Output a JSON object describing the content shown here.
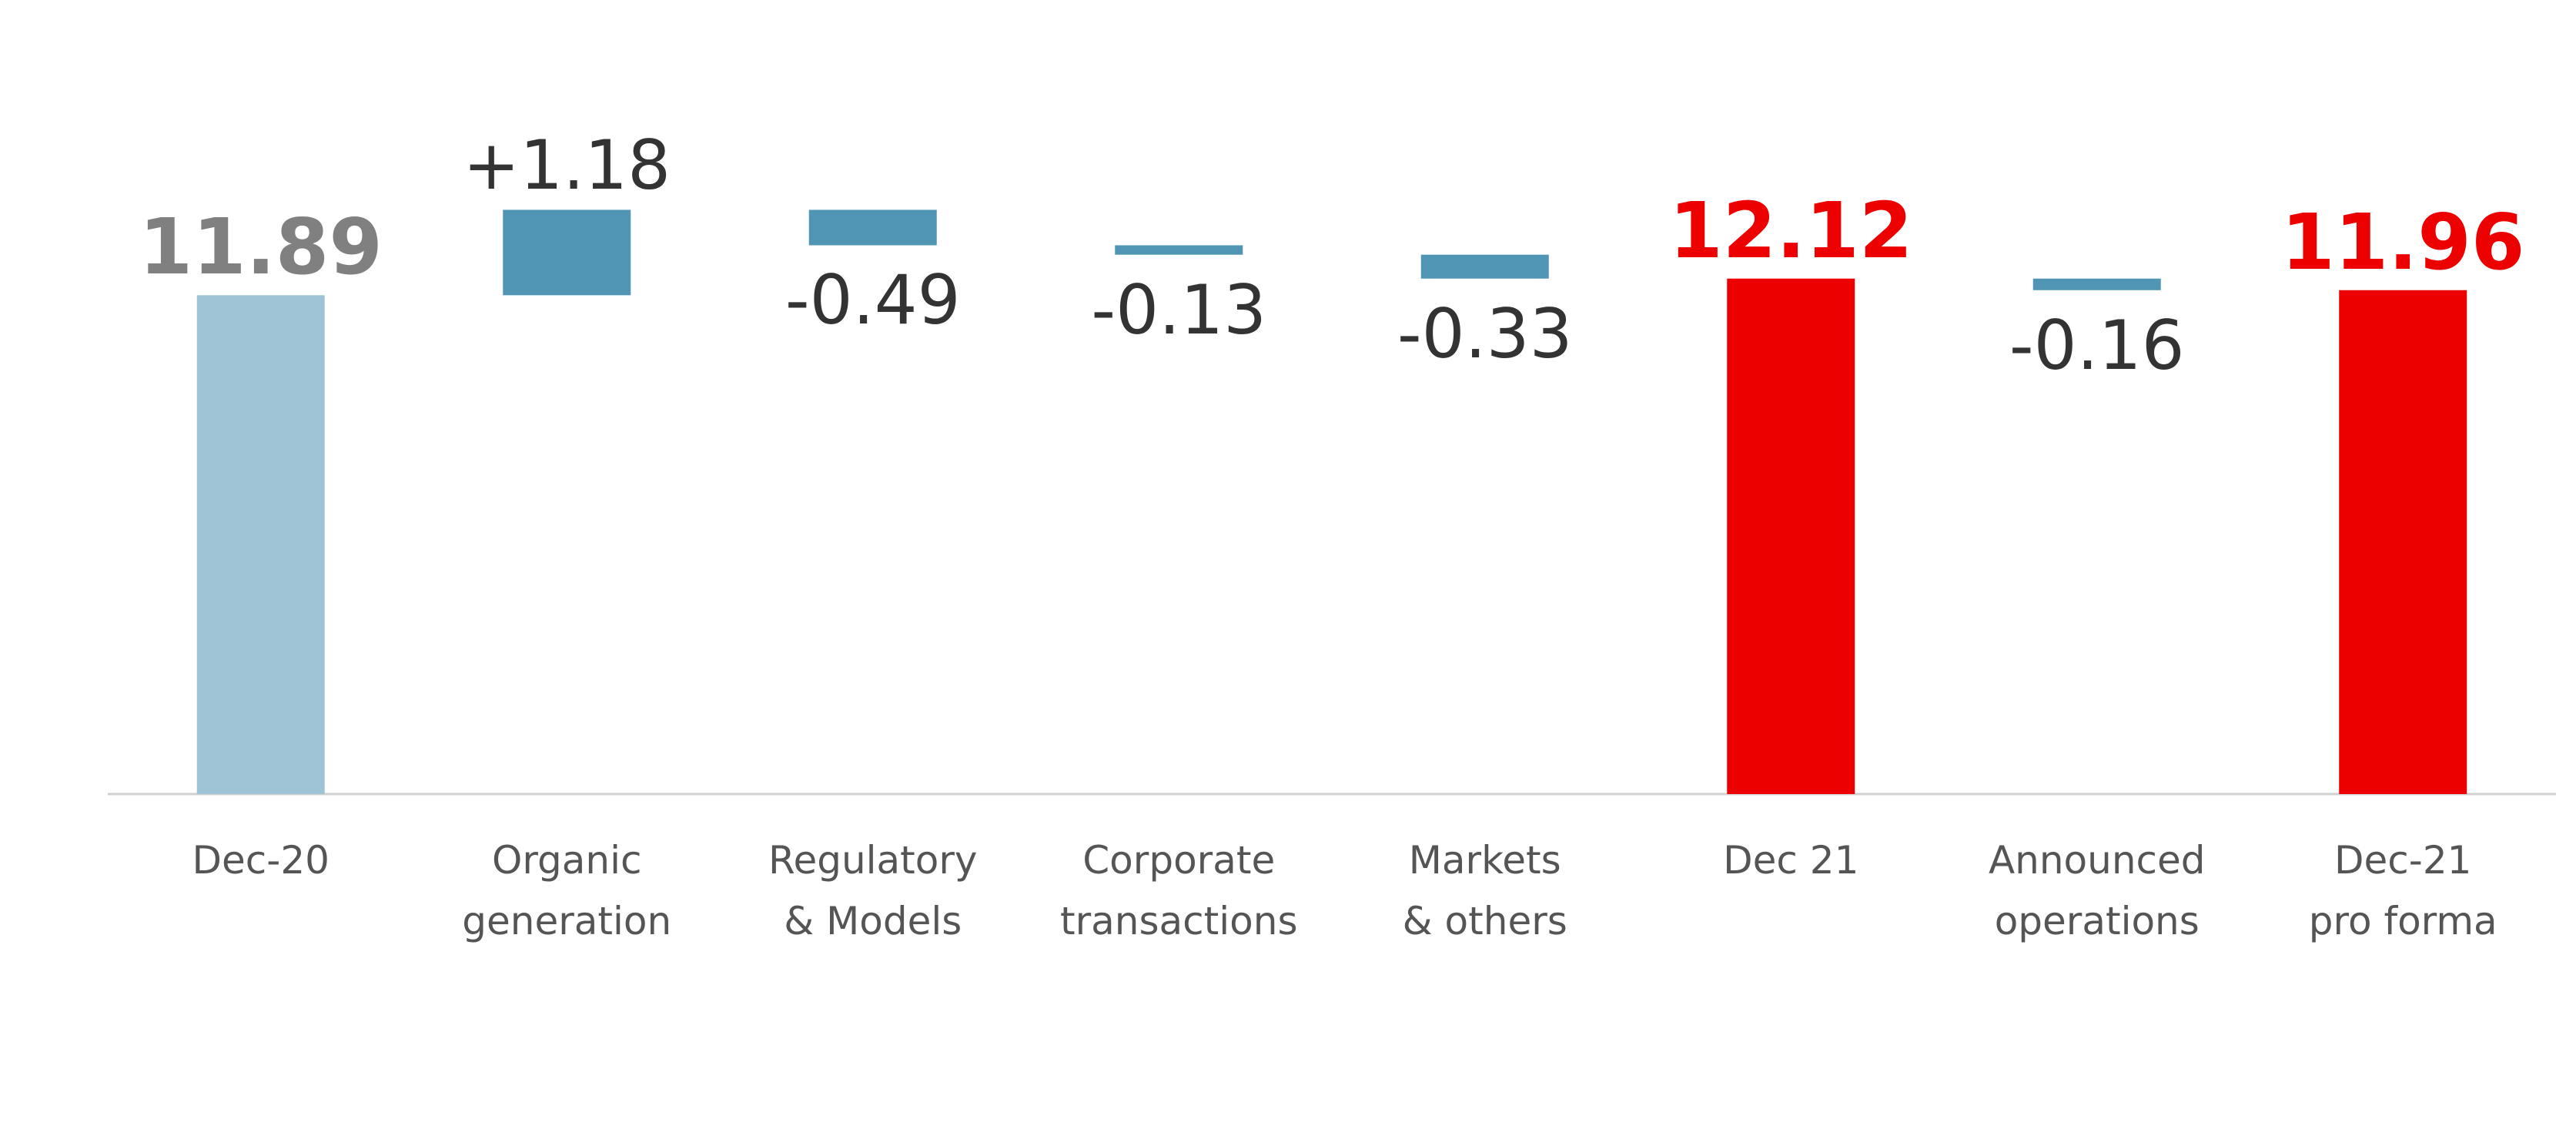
{
  "chart_data": {
    "type": "waterfall",
    "categories": [
      "Dec-20",
      "Organic\ngeneration",
      "Regulatory\n& Models",
      "Corporate\ntransactions",
      "Markets\n& others",
      "Dec 21",
      "Announced\noperations",
      "Dec-21\npro forma"
    ],
    "values": [
      11.89,
      1.18,
      -0.49,
      -0.13,
      -0.33,
      12.12,
      -0.16,
      11.96
    ],
    "value_labels": [
      "11.89",
      "+1.18",
      "-0.49",
      "-0.13",
      "-0.33",
      "12.12",
      "-0.16",
      "11.96"
    ],
    "measure": [
      "total",
      "relative",
      "relative",
      "relative",
      "relative",
      "total",
      "relative",
      "total"
    ],
    "colors": [
      "#9dc3d4",
      "#5096b4",
      "#5096b4",
      "#5096b4",
      "#5096b4",
      "#ec0000",
      "#5096b4",
      "#ec0000"
    ],
    "label_colors": [
      "#808080",
      "#333333",
      "#333333",
      "#333333",
      "#333333",
      "#ec0000",
      "#333333",
      "#ec0000"
    ],
    "ylim": [
      5,
      13
    ]
  }
}
